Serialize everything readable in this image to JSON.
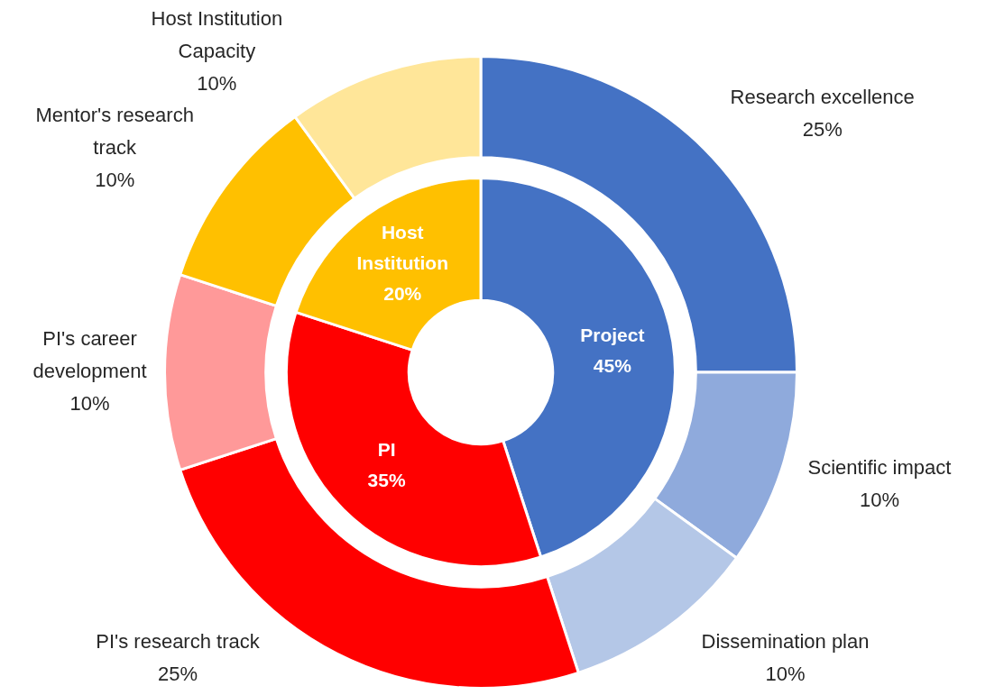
{
  "chart_data": [
    {
      "type": "donut",
      "categories": [
        "Research excellence",
        "Scientific impact",
        "Dissemination plan",
        "PI's research track",
        "PI's career development",
        "Mentor's research track",
        "Host Institution Capacity"
      ],
      "values": [
        25,
        10,
        10,
        25,
        10,
        10,
        10
      ],
      "colors": [
        "#4472c4",
        "#8faadc",
        "#b4c7e7",
        "#ff0000",
        "#ff9999",
        "#ffc000",
        "#ffe699"
      ],
      "value_labels": [
        "25%",
        "10%",
        "10%",
        "25%",
        "10%",
        "10%",
        "10%"
      ]
    },
    {
      "type": "donut",
      "categories": [
        "Project",
        "PI",
        "Host Institution"
      ],
      "values": [
        45,
        35,
        20
      ],
      "colors": [
        "#4472c4",
        "#ff0000",
        "#ffc000"
      ],
      "value_labels": [
        "45%",
        "35%",
        "20%"
      ]
    }
  ]
}
